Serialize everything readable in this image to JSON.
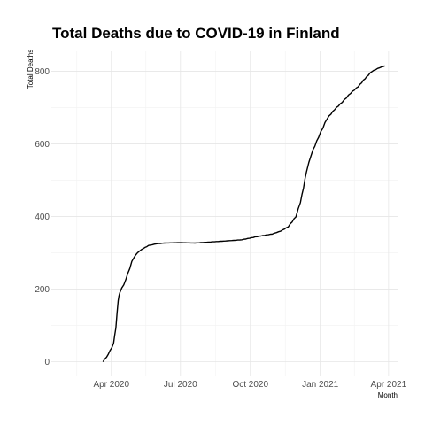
{
  "chart_data": {
    "type": "line",
    "title": "Total Deaths due to COVID-19 in Finland",
    "xlabel": "Month",
    "ylabel": "Total Deaths",
    "x_ticks": [
      "Apr 2020",
      "Jul 2020",
      "Oct 2020",
      "Jan 2021",
      "Apr 2021"
    ],
    "y_ticks": [
      0,
      200,
      400,
      600,
      800
    ],
    "xlim": [
      "2020-01-13",
      "2021-04-14"
    ],
    "ylim": [
      -40,
      855
    ],
    "grid": true,
    "series": [
      {
        "x": [
          "2020-03-21",
          "2020-03-28",
          "2020-04-04",
          "2020-04-07",
          "2020-04-10",
          "2020-04-12",
          "2020-04-20",
          "2020-04-28",
          "2020-05-03",
          "2020-05-08",
          "2020-05-13",
          "2020-05-20",
          "2020-05-30",
          "2020-06-10",
          "2020-06-30",
          "2020-07-20",
          "2020-08-10",
          "2020-09-01",
          "2020-09-20",
          "2020-10-10",
          "2020-10-30",
          "2020-11-10",
          "2020-11-20",
          "2020-11-30",
          "2020-12-06",
          "2020-12-10",
          "2020-12-14",
          "2020-12-20",
          "2020-12-30",
          "2021-01-10",
          "2021-01-20",
          "2021-01-30",
          "2021-02-10",
          "2021-02-20",
          "2021-03-01",
          "2021-03-10",
          "2021-03-20",
          "2021-03-27"
        ],
        "y": [
          0,
          20,
          50,
          95,
          170,
          190,
          225,
          275,
          295,
          305,
          312,
          320,
          325,
          327,
          328,
          327,
          330,
          333,
          336,
          345,
          352,
          360,
          372,
          400,
          440,
          480,
          525,
          570,
          620,
          670,
          695,
          715,
          740,
          758,
          780,
          800,
          810,
          815
        ]
      }
    ]
  }
}
